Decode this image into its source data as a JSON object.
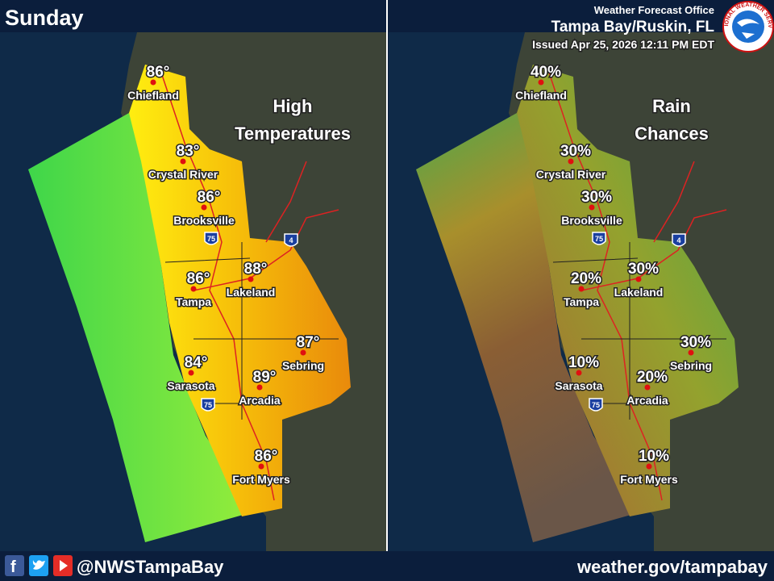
{
  "header": {
    "day": "Sunday",
    "office_label": "Weather Forecast Office",
    "office": "Tampa Bay/Ruskin, FL",
    "issued": "Issued Apr 25, 2026 12:11 PM EDT",
    "logo_text": "NATIONAL WEATHER SERVICE"
  },
  "panels": [
    {
      "title_lines": [
        "High",
        "Temperatures"
      ],
      "values": [
        "86°",
        "83°",
        "86°",
        "86°",
        "88°",
        "87°",
        "84°",
        "89°",
        "86°"
      ]
    },
    {
      "title_lines": [
        "Rain",
        "Chances"
      ],
      "values": [
        "40%",
        "30%",
        "30%",
        "20%",
        "30%",
        "30%",
        "10%",
        "20%",
        "10%"
      ]
    }
  ],
  "cities": [
    "Chiefland",
    "Crystal River",
    "Brooksville",
    "Tampa",
    "Lakeland",
    "Sebring",
    "Sarasota",
    "Arcadia",
    "Fort Myers"
  ],
  "shields": [
    "75",
    "4",
    "75"
  ],
  "footer": {
    "handle": "@NWSTampaBay",
    "url": "weather.gov/tampabay"
  }
}
